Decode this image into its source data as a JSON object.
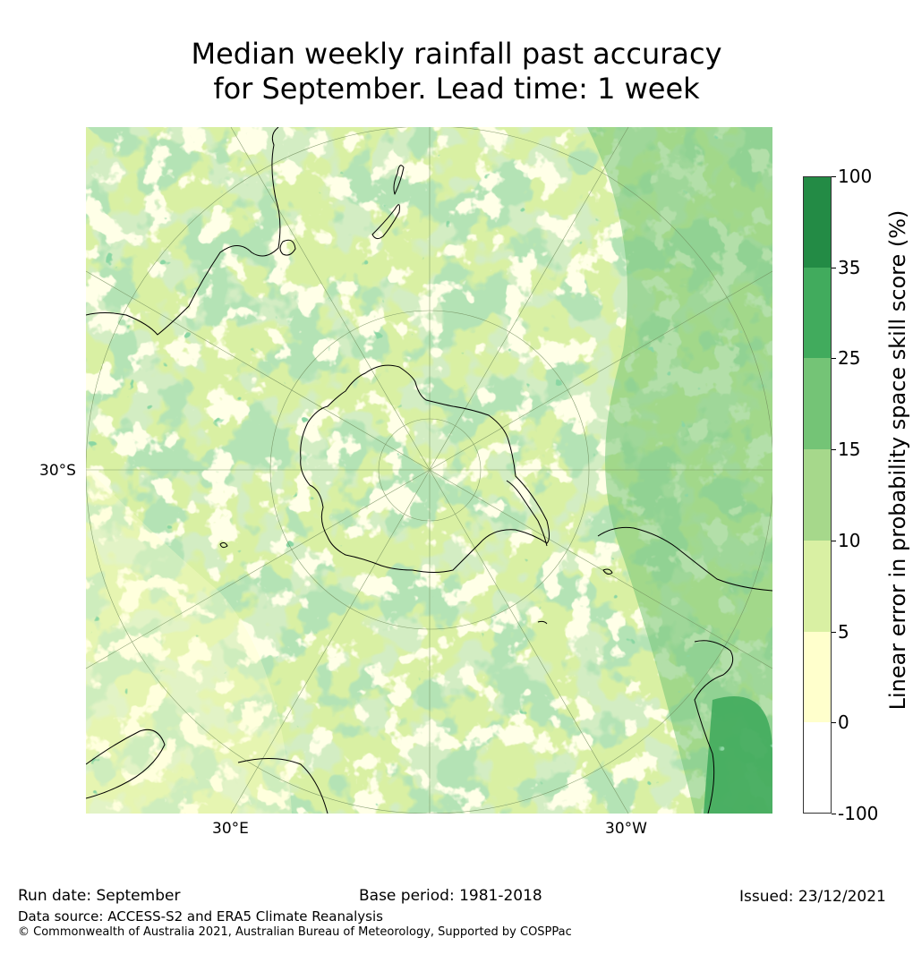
{
  "title": {
    "line1": "Median weekly rainfall past accuracy",
    "line2": "for September. Lead time: 1 week"
  },
  "map": {
    "projection": "south polar stereographic",
    "coastline_color": "#000000",
    "graticule_color": "#6f8a5a",
    "lat_labels": [
      "30°S"
    ],
    "lon_labels": [
      "30°E",
      "30°W"
    ],
    "dominant_class": "5–15"
  },
  "colorbar": {
    "label": "Linear error in probability space skill score (%)",
    "ticks": [
      "100",
      "35",
      "25",
      "15",
      "10",
      "5",
      "0",
      "-100"
    ],
    "bins": [
      {
        "from": 35,
        "to": 100,
        "color": "#238b45"
      },
      {
        "from": 25,
        "to": 35,
        "color": "#41ab5d"
      },
      {
        "from": 15,
        "to": 25,
        "color": "#74c476"
      },
      {
        "from": 10,
        "to": 15,
        "color": "#a6d88b"
      },
      {
        "from": 5,
        "to": 10,
        "color": "#d9f0a3"
      },
      {
        "from": 0,
        "to": 5,
        "color": "#ffffcc"
      },
      {
        "from": -100,
        "to": 0,
        "color": "#ffffff"
      }
    ]
  },
  "footer": {
    "run_date": "Run date: September",
    "base_period": "Base period: 1981-2018",
    "issued": "Issued: 23/12/2021",
    "data_source": "Data source: ACCESS-S2 and ERA5 Climate Reanalysis",
    "copyright": "© Commonwealth of Australia 2021, Australian Bureau of Meteorology, Supported by COSPPac"
  }
}
